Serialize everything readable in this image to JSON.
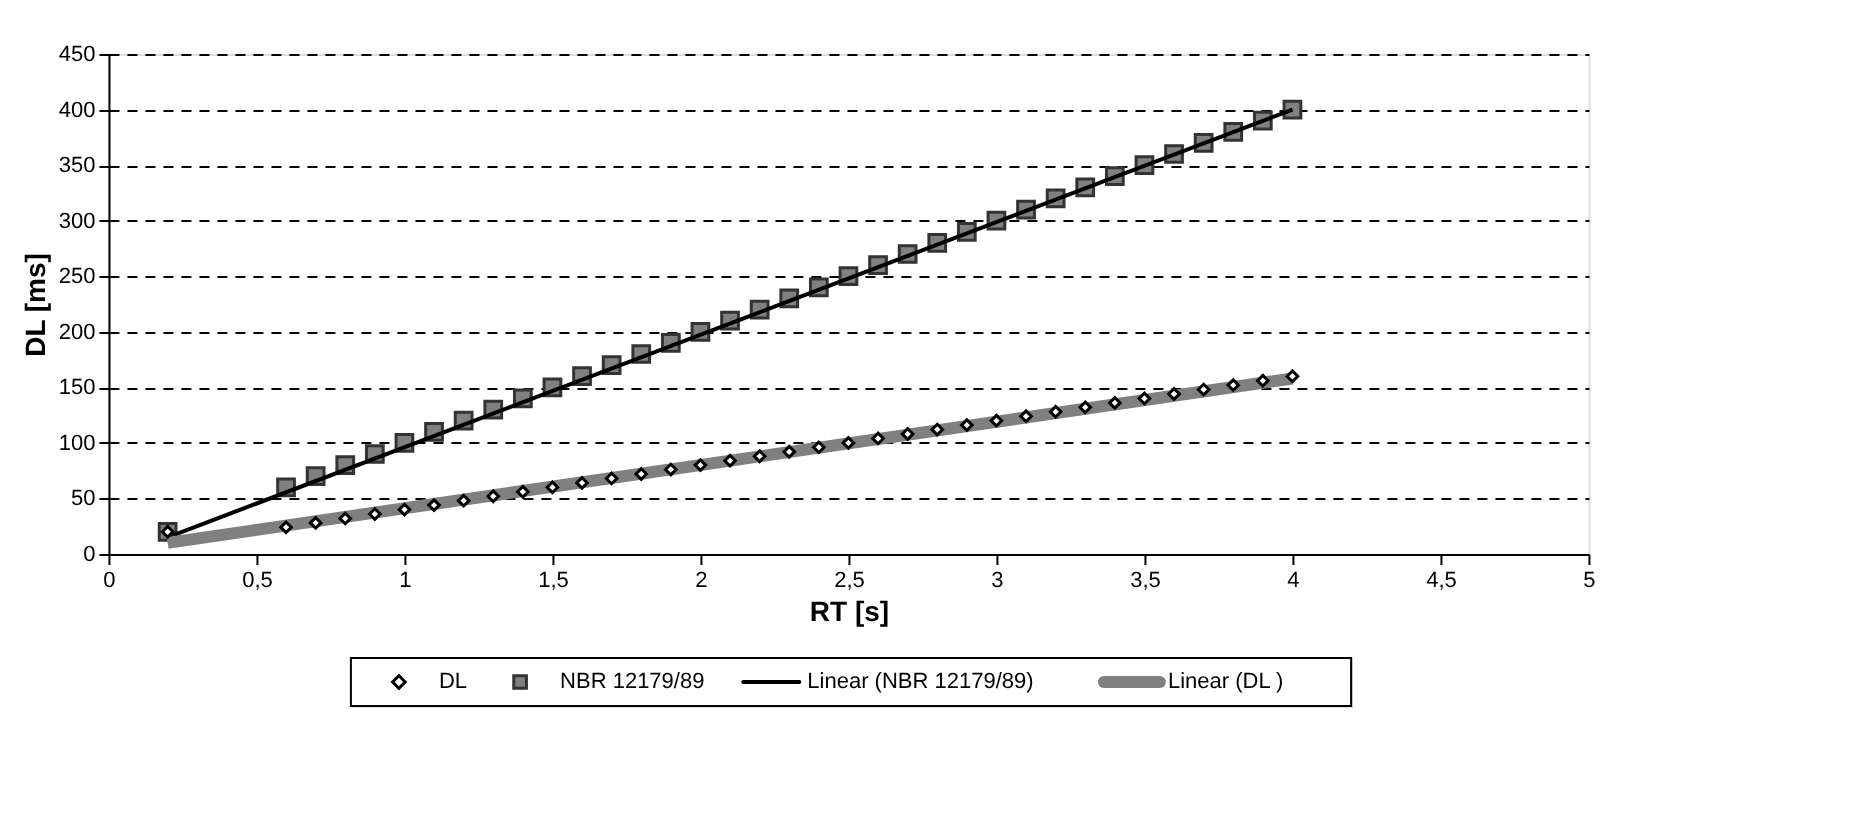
{
  "chart_data": {
    "type": "scatter",
    "xlabel": "RT [s]",
    "ylabel": "DL [ms]",
    "xlim": [
      0,
      5
    ],
    "xticks": [
      0,
      {
        "value": 0.5,
        "label": "0,5"
      },
      1,
      {
        "value": 1.5,
        "label": "1,5"
      },
      2,
      {
        "value": 2.5,
        "label": "2,5"
      },
      3,
      {
        "value": 3.5,
        "label": "3,5"
      },
      4,
      {
        "value": 4.5,
        "label": "4,5"
      },
      5
    ],
    "ylim": [
      0,
      450
    ],
    "yticks": [
      0,
      50,
      100,
      150,
      200,
      250,
      300,
      350,
      400,
      450
    ],
    "grid": "y",
    "legend": "bottom",
    "series": [
      {
        "name": "DL",
        "type": "scatter",
        "marker": "diamond",
        "color": "#000000",
        "x": [
          0.2,
          0.6,
          0.7,
          0.8,
          0.9,
          1.0,
          1.1,
          1.2,
          1.3,
          1.4,
          1.5,
          1.6,
          1.7,
          1.8,
          1.9,
          2.0,
          2.1,
          2.2,
          2.3,
          2.4,
          2.5,
          2.6,
          2.7,
          2.8,
          2.9,
          3.0,
          3.1,
          3.2,
          3.3,
          3.4,
          3.5,
          3.6,
          3.7,
          3.8,
          3.9,
          4.0
        ],
        "values": [
          20,
          24,
          28,
          32,
          36,
          40,
          44,
          48,
          52,
          56,
          60,
          64,
          68,
          72,
          76,
          80,
          84,
          88,
          92,
          96,
          100,
          104,
          108,
          112,
          116,
          120,
          124,
          128,
          132,
          136,
          140,
          144,
          148,
          152,
          156,
          160
        ]
      },
      {
        "name": "NBR 12179/89",
        "type": "scatter",
        "marker": "square",
        "color": "#808080",
        "x": [
          0.2,
          0.6,
          0.7,
          0.8,
          0.9,
          1.0,
          1.1,
          1.2,
          1.3,
          1.4,
          1.5,
          1.6,
          1.7,
          1.8,
          1.9,
          2.0,
          2.1,
          2.2,
          2.3,
          2.4,
          2.5,
          2.6,
          2.7,
          2.8,
          2.9,
          3.0,
          3.1,
          3.2,
          3.3,
          3.4,
          3.5,
          3.6,
          3.7,
          3.8,
          3.9,
          4.0
        ],
        "values": [
          20,
          60,
          70,
          80,
          90,
          100,
          110,
          120,
          130,
          140,
          150,
          160,
          170,
          180,
          190,
          200,
          210,
          220,
          230,
          240,
          250,
          260,
          270,
          280,
          290,
          300,
          310,
          320,
          330,
          340,
          350,
          360,
          370,
          380,
          390,
          400
        ]
      },
      {
        "name": "Linear (NBR 12179/89)",
        "type": "line",
        "line_style": "solid",
        "color": "#000000",
        "x": [
          0.2,
          4.0
        ],
        "values": [
          15,
          400
        ]
      },
      {
        "name": "Linear (DL )",
        "type": "line",
        "line_style": "solid",
        "color": "#808080",
        "x": [
          0.2,
          4.0
        ],
        "values": [
          10,
          158
        ]
      }
    ]
  }
}
